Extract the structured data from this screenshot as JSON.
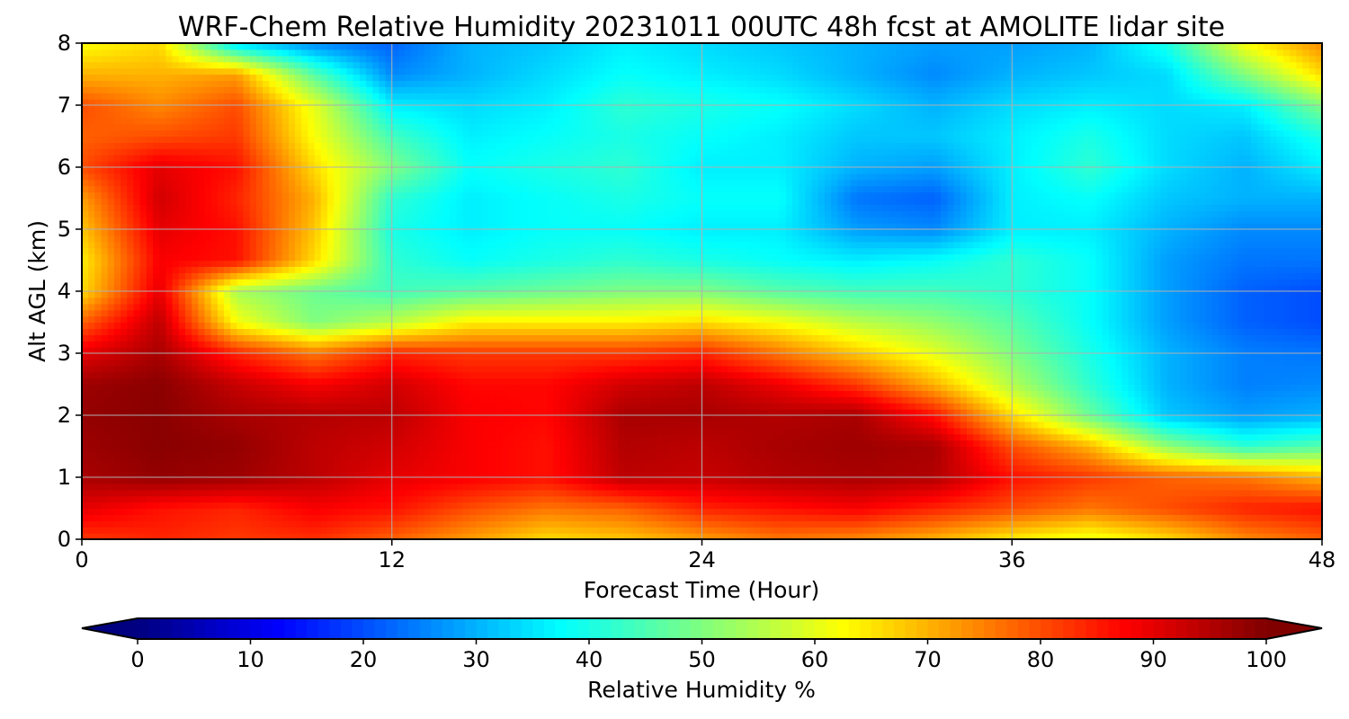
{
  "chart_data": {
    "type": "heatmap",
    "title": "WRF-Chem Relative Humidity 20231011 00UTC 48h fcst at AMOLITE lidar site",
    "xlabel": "Forecast Time (Hour)",
    "ylabel": "Alt AGL (km)",
    "xlim": [
      0,
      48
    ],
    "ylim": [
      0,
      8
    ],
    "x_ticks": [
      "0",
      "12",
      "24",
      "36",
      "48"
    ],
    "y_ticks": [
      "0",
      "1",
      "2",
      "3",
      "4",
      "5",
      "6",
      "7",
      "8"
    ],
    "grid": true,
    "colorbar": {
      "label": "Relative Humidity %",
      "range": [
        0,
        100
      ],
      "ticks": [
        "0",
        "10",
        "20",
        "30",
        "40",
        "50",
        "60",
        "70",
        "80",
        "90",
        "100"
      ],
      "extend": "both",
      "colormap": "jet"
    },
    "x": [
      0,
      3,
      6,
      9,
      12,
      15,
      18,
      21,
      24,
      27,
      30,
      33,
      36,
      39,
      42,
      45,
      48
    ],
    "y": [
      0,
      0.5,
      1,
      1.5,
      2,
      2.5,
      3,
      3.5,
      4,
      4.5,
      5,
      5.5,
      6,
      6.5,
      7,
      7.5,
      8
    ],
    "z": [
      [
        82,
        84,
        82,
        83,
        78,
        72,
        66,
        68,
        72,
        76,
        74,
        70,
        64,
        60,
        66,
        74,
        78
      ],
      [
        90,
        86,
        84,
        88,
        86,
        80,
        76,
        78,
        84,
        86,
        88,
        84,
        80,
        76,
        80,
        84,
        86
      ],
      [
        96,
        98,
        97,
        94,
        90,
        88,
        86,
        94,
        93,
        95,
        96,
        95,
        86,
        82,
        78,
        76,
        70
      ],
      [
        97,
        99,
        98,
        94,
        92,
        88,
        86,
        95,
        94,
        96,
        97,
        96,
        80,
        70,
        52,
        42,
        46
      ],
      [
        98,
        99,
        96,
        95,
        94,
        88,
        87,
        96,
        96,
        95,
        96,
        86,
        66,
        48,
        32,
        28,
        30
      ],
      [
        97,
        99,
        93,
        88,
        92,
        87,
        87,
        92,
        94,
        89,
        82,
        70,
        55,
        42,
        30,
        25,
        26
      ],
      [
        90,
        96,
        84,
        76,
        84,
        82,
        82,
        82,
        84,
        76,
        68,
        60,
        50,
        40,
        30,
        25,
        24
      ],
      [
        78,
        94,
        62,
        50,
        56,
        64,
        64,
        64,
        66,
        62,
        56,
        52,
        46,
        38,
        28,
        22,
        20
      ],
      [
        66,
        90,
        54,
        48,
        44,
        46,
        48,
        50,
        50,
        46,
        44,
        44,
        42,
        38,
        28,
        22,
        20
      ],
      [
        64,
        88,
        86,
        66,
        42,
        38,
        40,
        42,
        40,
        38,
        36,
        38,
        42,
        38,
        28,
        24,
        24
      ],
      [
        68,
        90,
        86,
        68,
        40,
        36,
        38,
        38,
        36,
        36,
        28,
        26,
        36,
        36,
        30,
        26,
        26
      ],
      [
        72,
        92,
        84,
        70,
        42,
        36,
        38,
        40,
        38,
        38,
        24,
        22,
        36,
        38,
        32,
        30,
        30
      ],
      [
        80,
        90,
        86,
        66,
        50,
        38,
        40,
        42,
        36,
        36,
        30,
        28,
        36,
        42,
        34,
        30,
        36
      ],
      [
        78,
        80,
        82,
        62,
        44,
        36,
        38,
        40,
        38,
        36,
        32,
        32,
        36,
        40,
        34,
        32,
        40
      ],
      [
        80,
        74,
        80,
        60,
        36,
        34,
        36,
        42,
        40,
        38,
        34,
        30,
        34,
        36,
        34,
        36,
        50
      ],
      [
        70,
        70,
        72,
        46,
        26,
        30,
        34,
        38,
        36,
        34,
        30,
        26,
        30,
        32,
        34,
        50,
        66
      ],
      [
        62,
        66,
        34,
        26,
        22,
        30,
        32,
        36,
        34,
        32,
        30,
        28,
        28,
        30,
        40,
        62,
        74
      ]
    ]
  }
}
